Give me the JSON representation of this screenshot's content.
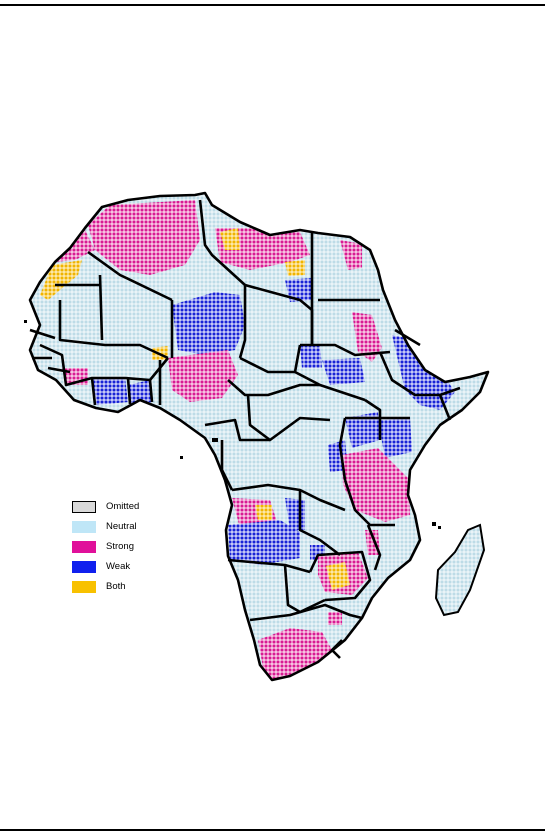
{
  "map": {
    "region": "Africa",
    "background_color": "#ffffff",
    "border_color": "#000000",
    "dot_color_light": "#cfe6ef"
  },
  "legend": {
    "items": [
      {
        "label": "Omitted",
        "color": "#d9d9d9",
        "outline": "#000000"
      },
      {
        "label": "Neutral",
        "color": "#bfe6f7",
        "outline": "none"
      },
      {
        "label": "Strong",
        "color": "#e0109a",
        "outline": "none"
      },
      {
        "label": "Weak",
        "color": "#1020ee",
        "outline": "none"
      },
      {
        "label": "Both",
        "color": "#f8c100",
        "outline": "none"
      }
    ]
  }
}
